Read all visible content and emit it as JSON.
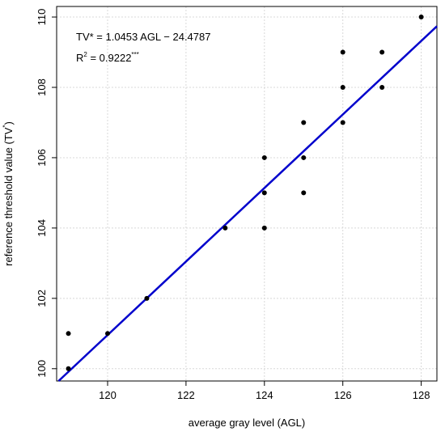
{
  "chart_data": {
    "type": "scatter",
    "xlabel": "average gray level (AGL)",
    "ylabel": "reference threshold value (TV",
    "ylabel_sup": "*",
    "ylabel_end": ")",
    "xlim": [
      118.7,
      128.4
    ],
    "ylim": [
      99.65,
      110.3
    ],
    "xticks": [
      120,
      122,
      124,
      126,
      128
    ],
    "yticks": [
      100,
      102,
      104,
      106,
      108,
      110
    ],
    "grid": true,
    "points": [
      {
        "x": 119,
        "y": 100
      },
      {
        "x": 119,
        "y": 101
      },
      {
        "x": 120,
        "y": 101
      },
      {
        "x": 121,
        "y": 102
      },
      {
        "x": 123,
        "y": 104
      },
      {
        "x": 124,
        "y": 104
      },
      {
        "x": 124,
        "y": 105
      },
      {
        "x": 124,
        "y": 106
      },
      {
        "x": 125,
        "y": 105
      },
      {
        "x": 125,
        "y": 106
      },
      {
        "x": 125,
        "y": 107
      },
      {
        "x": 126,
        "y": 107
      },
      {
        "x": 126,
        "y": 108
      },
      {
        "x": 126,
        "y": 109
      },
      {
        "x": 127,
        "y": 108
      },
      {
        "x": 127,
        "y": 109
      },
      {
        "x": 128,
        "y": 110
      }
    ],
    "fit": {
      "slope": 1.0453,
      "intercept": -24.4787,
      "color": "#0000cc"
    },
    "annotations": {
      "equation": "TV* = 1.0453 AGL − 24.4787",
      "r2_label": "R",
      "r2_sup": "2",
      "r2_value": " = 0.9222",
      "r2_stars": "***"
    }
  }
}
